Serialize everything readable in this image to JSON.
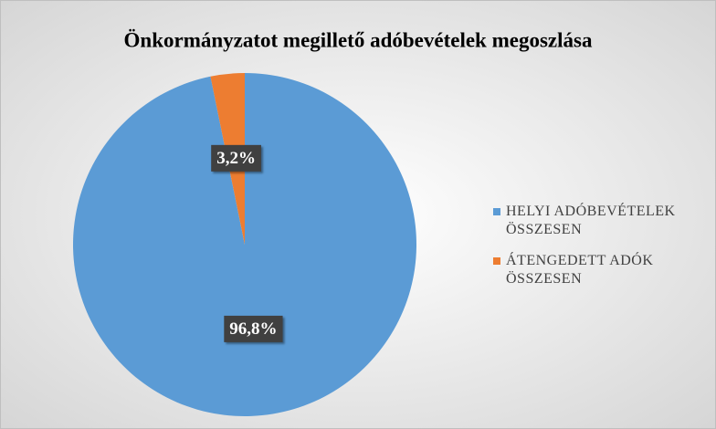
{
  "chart_data": {
    "type": "pie",
    "title": "Önkormányzatot megillető adóbevételek megoszlása",
    "categories": [
      "HELYI ADÓBEVÉTELEK ÖSSZESEN",
      "ÁTENGEDETT ADÓK ÖSSZESEN"
    ],
    "values": [
      96.8,
      3.2
    ],
    "value_labels": [
      "96,8%",
      "3,2%"
    ],
    "colors": [
      "#5b9bd5",
      "#ed7d31"
    ],
    "legend": "right"
  }
}
